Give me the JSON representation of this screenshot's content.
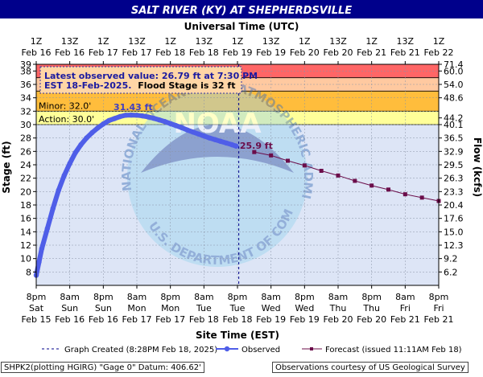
{
  "title": "SALT RIVER (KY) AT SHEPHERDSVILLE",
  "top_axis_title": "Universal Time (UTC)",
  "bottom_axis_title": "Site Time (EST)",
  "footer": {
    "left": "SHPK2(plotting HGIRG) \"Gage 0\" Datum: 406.62'",
    "right": "Observations courtesy of US Geological Survey"
  },
  "info_box": {
    "line1": "Latest observed value: 26.79 ft at 7:30 PM",
    "line2a": "EST 18-Feb-2025.",
    "line2b": "Flood Stage is 32 ft"
  },
  "watermark_text": "NATIONAL OCEANIC AND ATMOSPHERIC ADMINISTRATION · U.S. DEPARTMENT OF COMMERCE · NOAA",
  "colors": {
    "title_bg": "#00008b",
    "title_fg": "#ffffff",
    "plot_bg": "#dde5f6",
    "moderate_band": "#ffc9a0",
    "minor_band": "#ffbd3c",
    "major_band": "#ff6666",
    "action_band": "#ffff99",
    "observed": "#4f5ee8",
    "forecast": "#6b0d4a",
    "annotation": "#4040c0"
  },
  "chart_data": {
    "type": "line",
    "ylabel": "Stage (ft)",
    "y2label": "Flow (kcfs)",
    "ylim": [
      6,
      39
    ],
    "yticks": [
      8,
      10,
      12,
      14,
      16,
      18,
      20,
      22,
      24,
      26,
      28,
      30,
      32,
      34,
      36,
      38,
      39
    ],
    "y2ticks": [
      {
        "stage": 8,
        "label": "6.2"
      },
      {
        "stage": 10,
        "label": "9.2"
      },
      {
        "stage": 12,
        "label": "12.3"
      },
      {
        "stage": 14,
        "label": "15.0"
      },
      {
        "stage": 16,
        "label": "17.6"
      },
      {
        "stage": 18,
        "label": "20.4"
      },
      {
        "stage": 20,
        "label": "23.3"
      },
      {
        "stage": 22,
        "label": "26.3"
      },
      {
        "stage": 24,
        "label": "29.5"
      },
      {
        "stage": 26,
        "label": "32.9"
      },
      {
        "stage": 28,
        "label": "36.5"
      },
      {
        "stage": 30,
        "label": "40.1"
      },
      {
        "stage": 31,
        "label": "44.2"
      },
      {
        "stage": 34,
        "label": "48.6"
      },
      {
        "stage": 36,
        "label": "54.0"
      },
      {
        "stage": 38,
        "label": "60.0"
      },
      {
        "stage": 39,
        "label": "71.4"
      }
    ],
    "xlim_hours": [
      0,
      144
    ],
    "xlim": [
      "2025-02-15 20:00",
      "2025-02-21 20:00"
    ],
    "bottom_ticks": [
      {
        "x": "2025-02-15 20:00",
        "l1": "8pm",
        "l2": "Sat",
        "l3": "Feb 15"
      },
      {
        "x": "2025-02-16 08:00",
        "l1": "8am",
        "l2": "Sun",
        "l3": "Feb 16"
      },
      {
        "x": "2025-02-16 20:00",
        "l1": "8pm",
        "l2": "Sun",
        "l3": "Feb 16"
      },
      {
        "x": "2025-02-17 08:00",
        "l1": "8am",
        "l2": "Mon",
        "l3": "Feb 17"
      },
      {
        "x": "2025-02-17 20:00",
        "l1": "8pm",
        "l2": "Mon",
        "l3": "Feb 17"
      },
      {
        "x": "2025-02-18 08:00",
        "l1": "8am",
        "l2": "Tue",
        "l3": "Feb 18"
      },
      {
        "x": "2025-02-18 20:00",
        "l1": "8pm",
        "l2": "Tue",
        "l3": "Feb 18"
      },
      {
        "x": "2025-02-19 08:00",
        "l1": "8am",
        "l2": "Wed",
        "l3": "Feb 19"
      },
      {
        "x": "2025-02-19 20:00",
        "l1": "8pm",
        "l2": "Wed",
        "l3": "Feb 19"
      },
      {
        "x": "2025-02-20 08:00",
        "l1": "8am",
        "l2": "Thu",
        "l3": "Feb 20"
      },
      {
        "x": "2025-02-20 20:00",
        "l1": "8pm",
        "l2": "Thu",
        "l3": "Feb 20"
      },
      {
        "x": "2025-02-21 08:00",
        "l1": "8am",
        "l2": "Fri",
        "l3": "Feb 21"
      },
      {
        "x": "2025-02-21 20:00",
        "l1": "8pm",
        "l2": "Fri",
        "l3": "Feb 21"
      }
    ],
    "top_ticks": [
      {
        "x": "2025-02-15 20:00",
        "l1": "1Z",
        "l2": "Feb 16"
      },
      {
        "x": "2025-02-16 08:00",
        "l1": "13Z",
        "l2": "Feb 16"
      },
      {
        "x": "2025-02-16 20:00",
        "l1": "1Z",
        "l2": "Feb 17"
      },
      {
        "x": "2025-02-17 08:00",
        "l1": "13Z",
        "l2": "Feb 17"
      },
      {
        "x": "2025-02-17 20:00",
        "l1": "1Z",
        "l2": "Feb 18"
      },
      {
        "x": "2025-02-18 08:00",
        "l1": "13Z",
        "l2": "Feb 18"
      },
      {
        "x": "2025-02-18 20:00",
        "l1": "1Z",
        "l2": "Feb 19"
      },
      {
        "x": "2025-02-19 08:00",
        "l1": "13Z",
        "l2": "Feb 19"
      },
      {
        "x": "2025-02-19 20:00",
        "l1": "1Z",
        "l2": "Feb 20"
      },
      {
        "x": "2025-02-20 08:00",
        "l1": "13Z",
        "l2": "Feb 20"
      },
      {
        "x": "2025-02-20 20:00",
        "l1": "1Z",
        "l2": "Feb 21"
      },
      {
        "x": "2025-02-21 08:00",
        "l1": "13Z",
        "l2": "Feb 21"
      },
      {
        "x": "2025-02-21 20:00",
        "l1": "1Z",
        "l2": "Feb 22"
      }
    ],
    "flood_categories": [
      {
        "name": "action",
        "label": "Action: 30.0'",
        "from": 30,
        "to": 32
      },
      {
        "name": "minor",
        "label": "Minor: 32.0'",
        "from": 32,
        "to": 35
      },
      {
        "name": "moderate",
        "label": "",
        "from": 35,
        "to": 37
      },
      {
        "name": "major",
        "label": "",
        "from": 37,
        "to": 39
      }
    ],
    "created_marker": "2025-02-18 20:28",
    "observed": {
      "name": "Observed",
      "x": [
        "2025-02-15 20:00",
        "2025-02-15 21:00",
        "2025-02-15 22:00",
        "2025-02-16 00:00",
        "2025-02-16 02:00",
        "2025-02-16 04:00",
        "2025-02-16 06:00",
        "2025-02-16 08:00",
        "2025-02-16 10:00",
        "2025-02-16 12:00",
        "2025-02-16 14:00",
        "2025-02-16 16:00",
        "2025-02-16 18:00",
        "2025-02-16 20:00",
        "2025-02-16 22:00",
        "2025-02-17 00:00",
        "2025-02-17 02:00",
        "2025-02-17 04:00",
        "2025-02-17 06:00",
        "2025-02-17 08:00",
        "2025-02-17 10:00",
        "2025-02-17 12:00",
        "2025-02-17 14:00",
        "2025-02-17 16:00",
        "2025-02-17 18:00",
        "2025-02-17 20:00",
        "2025-02-17 22:00",
        "2025-02-18 00:00",
        "2025-02-18 02:00",
        "2025-02-18 04:00",
        "2025-02-18 06:00",
        "2025-02-18 08:00",
        "2025-02-18 10:00",
        "2025-02-18 12:00",
        "2025-02-18 14:00",
        "2025-02-18 16:00",
        "2025-02-18 18:00",
        "2025-02-18 19:30"
      ],
      "y": [
        7.5,
        9.5,
        11.5,
        14.5,
        17.5,
        20.2,
        22.4,
        24.2,
        25.8,
        27.0,
        28.0,
        28.8,
        29.5,
        30.1,
        30.6,
        30.9,
        31.2,
        31.4,
        31.43,
        31.4,
        31.3,
        31.15,
        30.95,
        30.7,
        30.45,
        30.15,
        29.85,
        29.55,
        29.2,
        28.9,
        28.6,
        28.3,
        28.0,
        27.75,
        27.5,
        27.25,
        27.0,
        26.79
      ]
    },
    "forecast": {
      "name": "Forecast (issued 11:11AM Feb 18)",
      "x": [
        "2025-02-19 02:00",
        "2025-02-19 08:00",
        "2025-02-19 14:00",
        "2025-02-19 20:00",
        "2025-02-20 02:00",
        "2025-02-20 08:00",
        "2025-02-20 14:00",
        "2025-02-20 20:00",
        "2025-02-21 02:00",
        "2025-02-21 08:00",
        "2025-02-21 14:00",
        "2025-02-21 20:00"
      ],
      "y": [
        25.9,
        25.4,
        24.6,
        23.9,
        23.1,
        22.4,
        21.6,
        20.9,
        20.3,
        19.6,
        19.1,
        18.6
      ]
    },
    "annotations": {
      "peak_label": "31.43 ft",
      "peak_x": "2025-02-17 06:00",
      "peak_y": 31.43,
      "forecast_first_label": "25.9 ft",
      "forecast_first_x": "2025-02-19 02:00",
      "forecast_first_y": 25.9
    },
    "legend": [
      {
        "name": "created",
        "label": "Graph Created (8:28PM Feb 18, 2025)"
      },
      {
        "name": "observed",
        "label": "Observed"
      },
      {
        "name": "forecast",
        "label": "Forecast (issued 11:11AM Feb 18)"
      }
    ],
    "grid": true,
    "legend_position": "bottom"
  }
}
